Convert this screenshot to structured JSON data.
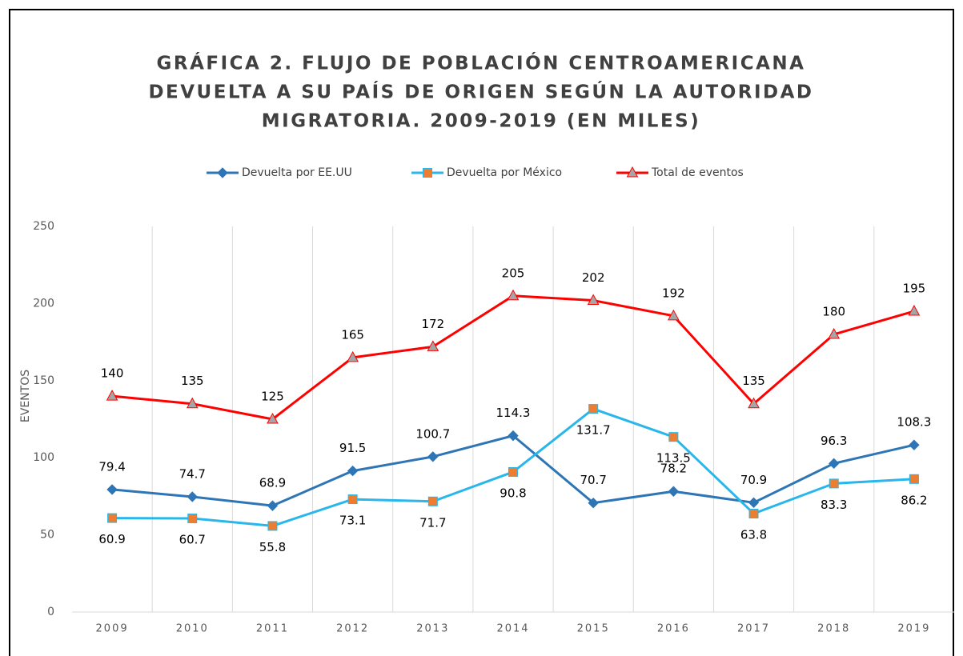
{
  "chart_data": {
    "type": "line",
    "title": [
      "GRÁFICA 2. FLUJO DE POBLACIÓN CENTROAMERICANA",
      "DEVUELTA A SU PAÍS DE ORIGEN SEGÚN LA AUTORIDAD",
      "MIGRATORIA. 2009-2019 (EN MILES)"
    ],
    "y_label": "EVENTOS",
    "categories": [
      "2009",
      "2010",
      "2011",
      "2012",
      "2013",
      "2014",
      "2015",
      "2016",
      "2017",
      "2018",
      "2019"
    ],
    "series": [
      {
        "name": "Devuelta por EE.UU",
        "color": "#2e75b6",
        "marker": "diamond",
        "marker_color": "#2e75b6",
        "label_position": "above",
        "values": [
          79.4,
          74.7,
          68.9,
          91.5,
          100.7,
          114.3,
          70.7,
          78.2,
          70.9,
          96.3,
          108.3
        ]
      },
      {
        "name": "Devuelta por México",
        "color": "#29b6ea",
        "marker": "square",
        "marker_color": "#ed7d31",
        "label_position": "below",
        "values": [
          60.9,
          60.7,
          55.8,
          73.1,
          71.7,
          90.8,
          131.7,
          113.5,
          63.8,
          83.3,
          86.2
        ]
      },
      {
        "name": "Total de eventos",
        "color": "#ff0000",
        "marker": "triangle",
        "marker_color": "#a5a5a5",
        "label_position": "above",
        "values": [
          140,
          135,
          125,
          165,
          172,
          205,
          202,
          192,
          135,
          180,
          195
        ]
      }
    ],
    "ylim": [
      0,
      250
    ],
    "yticks": [
      0,
      50,
      100,
      150,
      200,
      250
    ],
    "grid": "vertical",
    "legend": "top"
  }
}
